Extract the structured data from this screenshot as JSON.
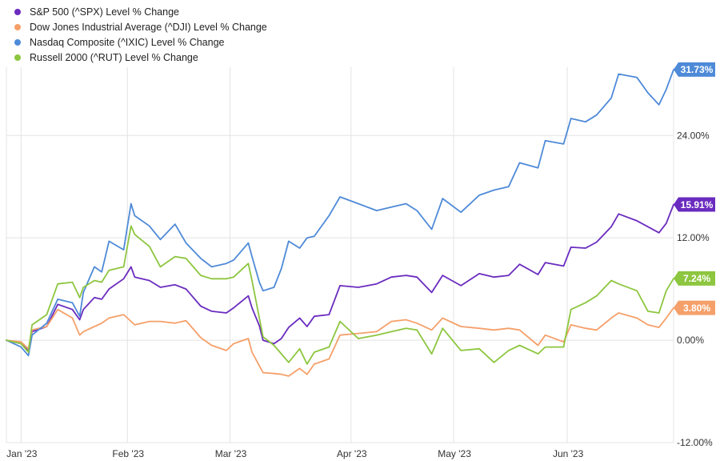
{
  "chart_data": {
    "type": "line",
    "title": "",
    "xlabel": "",
    "ylabel": "",
    "x_range": [
      "2022-12-30",
      "2023-06-30"
    ],
    "ylim": [
      -12,
      32
    ],
    "y_ticks": [
      {
        "value": 24,
        "label": "24.00%"
      },
      {
        "value": 12,
        "label": "12.00%"
      },
      {
        "value": 0,
        "label": "0.00%"
      },
      {
        "value": -12,
        "label": "-12.00%"
      }
    ],
    "x_ticks": [
      {
        "date": "2023-01-03",
        "label": "Jan '23"
      },
      {
        "date": "2023-02-01",
        "label": "Feb '23"
      },
      {
        "date": "2023-03-01",
        "label": "Mar '23"
      },
      {
        "date": "2023-04-03",
        "label": "Apr '23"
      },
      {
        "date": "2023-05-01",
        "label": "May '23"
      },
      {
        "date": "2023-06-01",
        "label": "Jun '23"
      }
    ],
    "grid": true,
    "legend_position": "top-left",
    "series": [
      {
        "name": "S&P 500 (^SPX) Level % Change",
        "color": "#6a2bbf",
        "end_label": "15.91%",
        "points": [
          [
            "2022-12-30",
            0
          ],
          [
            "2023-01-03",
            -0.4
          ],
          [
            "2023-01-05",
            -1.2
          ],
          [
            "2023-01-06",
            1.0
          ],
          [
            "2023-01-10",
            1.6
          ],
          [
            "2023-01-13",
            4.2
          ],
          [
            "2023-01-17",
            3.6
          ],
          [
            "2023-01-19",
            2.4
          ],
          [
            "2023-01-20",
            3.6
          ],
          [
            "2023-01-23",
            5.0
          ],
          [
            "2023-01-25",
            4.8
          ],
          [
            "2023-01-27",
            6.0
          ],
          [
            "2023-01-31",
            7.2
          ],
          [
            "2023-02-02",
            8.6
          ],
          [
            "2023-02-03",
            7.4
          ],
          [
            "2023-02-07",
            7.0
          ],
          [
            "2023-02-10",
            6.2
          ],
          [
            "2023-02-14",
            6.5
          ],
          [
            "2023-02-17",
            6.0
          ],
          [
            "2023-02-21",
            4.0
          ],
          [
            "2023-02-24",
            3.4
          ],
          [
            "2023-02-28",
            3.2
          ],
          [
            "2023-03-02",
            3.8
          ],
          [
            "2023-03-06",
            5.2
          ],
          [
            "2023-03-07",
            3.8
          ],
          [
            "2023-03-09",
            1.7
          ],
          [
            "2023-03-10",
            0.0
          ],
          [
            "2023-03-13",
            -0.4
          ],
          [
            "2023-03-15",
            0.2
          ],
          [
            "2023-03-17",
            1.5
          ],
          [
            "2023-03-20",
            2.6
          ],
          [
            "2023-03-22",
            1.6
          ],
          [
            "2023-03-24",
            2.8
          ],
          [
            "2023-03-28",
            3.0
          ],
          [
            "2023-03-31",
            6.4
          ],
          [
            "2023-04-05",
            6.2
          ],
          [
            "2023-04-10",
            6.6
          ],
          [
            "2023-04-14",
            7.4
          ],
          [
            "2023-04-18",
            7.6
          ],
          [
            "2023-04-21",
            7.4
          ],
          [
            "2023-04-25",
            5.6
          ],
          [
            "2023-04-28",
            7.6
          ],
          [
            "2023-05-03",
            6.4
          ],
          [
            "2023-05-08",
            7.8
          ],
          [
            "2023-05-12",
            7.4
          ],
          [
            "2023-05-16",
            7.6
          ],
          [
            "2023-05-19",
            8.9
          ],
          [
            "2023-05-24",
            7.7
          ],
          [
            "2023-05-26",
            9.1
          ],
          [
            "2023-05-31",
            8.7
          ],
          [
            "2023-06-02",
            10.9
          ],
          [
            "2023-06-06",
            10.8
          ],
          [
            "2023-06-09",
            11.5
          ],
          [
            "2023-06-13",
            13.3
          ],
          [
            "2023-06-15",
            14.8
          ],
          [
            "2023-06-20",
            14.0
          ],
          [
            "2023-06-23",
            13.3
          ],
          [
            "2023-06-26",
            12.6
          ],
          [
            "2023-06-28",
            13.7
          ],
          [
            "2023-06-30",
            15.91
          ]
        ]
      },
      {
        "name": "Dow Jones Industrial Average (^DJI) Level % Change",
        "color": "#f5a06a",
        "end_label": "3.80%",
        "points": [
          [
            "2022-12-30",
            0
          ],
          [
            "2023-01-03",
            -0.2
          ],
          [
            "2023-01-05",
            -1.0
          ],
          [
            "2023-01-06",
            1.2
          ],
          [
            "2023-01-10",
            1.6
          ],
          [
            "2023-01-13",
            3.6
          ],
          [
            "2023-01-17",
            2.6
          ],
          [
            "2023-01-19",
            0.6
          ],
          [
            "2023-01-20",
            1.0
          ],
          [
            "2023-01-23",
            1.6
          ],
          [
            "2023-01-25",
            2.0
          ],
          [
            "2023-01-27",
            2.6
          ],
          [
            "2023-01-31",
            3.0
          ],
          [
            "2023-02-02",
            2.2
          ],
          [
            "2023-02-03",
            1.8
          ],
          [
            "2023-02-07",
            2.2
          ],
          [
            "2023-02-10",
            2.2
          ],
          [
            "2023-02-14",
            2.0
          ],
          [
            "2023-02-17",
            2.3
          ],
          [
            "2023-02-21",
            0.3
          ],
          [
            "2023-02-24",
            -0.6
          ],
          [
            "2023-02-28",
            -1.2
          ],
          [
            "2023-03-02",
            -0.4
          ],
          [
            "2023-03-06",
            0.2
          ],
          [
            "2023-03-07",
            -1.4
          ],
          [
            "2023-03-09",
            -3.0
          ],
          [
            "2023-03-10",
            -3.8
          ],
          [
            "2023-03-13",
            -3.9
          ],
          [
            "2023-03-15",
            -4.0
          ],
          [
            "2023-03-17",
            -4.2
          ],
          [
            "2023-03-20",
            -3.3
          ],
          [
            "2023-03-22",
            -4.0
          ],
          [
            "2023-03-24",
            -2.8
          ],
          [
            "2023-03-28",
            -2.2
          ],
          [
            "2023-03-31",
            0.6
          ],
          [
            "2023-04-05",
            0.8
          ],
          [
            "2023-04-10",
            1.0
          ],
          [
            "2023-04-14",
            2.2
          ],
          [
            "2023-04-18",
            2.4
          ],
          [
            "2023-04-21",
            2.0
          ],
          [
            "2023-04-25",
            1.2
          ],
          [
            "2023-04-28",
            2.6
          ],
          [
            "2023-05-03",
            1.6
          ],
          [
            "2023-05-08",
            1.4
          ],
          [
            "2023-05-12",
            1.2
          ],
          [
            "2023-05-16",
            1.4
          ],
          [
            "2023-05-19",
            1.2
          ],
          [
            "2023-05-24",
            -0.6
          ],
          [
            "2023-05-26",
            0.6
          ],
          [
            "2023-05-31",
            -0.2
          ],
          [
            "2023-06-02",
            1.8
          ],
          [
            "2023-06-06",
            1.4
          ],
          [
            "2023-06-09",
            1.2
          ],
          [
            "2023-06-13",
            2.6
          ],
          [
            "2023-06-15",
            3.2
          ],
          [
            "2023-06-20",
            2.6
          ],
          [
            "2023-06-23",
            1.8
          ],
          [
            "2023-06-26",
            1.5
          ],
          [
            "2023-06-28",
            2.6
          ],
          [
            "2023-06-30",
            3.8
          ]
        ]
      },
      {
        "name": "Nasdaq Composite (^IXIC) Level % Change",
        "color": "#4e8ad8",
        "end_label": "31.73%",
        "points": [
          [
            "2022-12-30",
            0
          ],
          [
            "2023-01-03",
            -0.8
          ],
          [
            "2023-01-05",
            -1.8
          ],
          [
            "2023-01-06",
            0.6
          ],
          [
            "2023-01-10",
            2.0
          ],
          [
            "2023-01-13",
            4.8
          ],
          [
            "2023-01-17",
            4.4
          ],
          [
            "2023-01-19",
            2.8
          ],
          [
            "2023-01-20",
            5.6
          ],
          [
            "2023-01-23",
            8.6
          ],
          [
            "2023-01-25",
            8.0
          ],
          [
            "2023-01-27",
            11.6
          ],
          [
            "2023-01-31",
            10.6
          ],
          [
            "2023-02-02",
            16.0
          ],
          [
            "2023-02-03",
            14.6
          ],
          [
            "2023-02-07",
            13.4
          ],
          [
            "2023-02-10",
            11.8
          ],
          [
            "2023-02-14",
            13.6
          ],
          [
            "2023-02-17",
            11.4
          ],
          [
            "2023-02-21",
            9.6
          ],
          [
            "2023-02-24",
            8.6
          ],
          [
            "2023-02-28",
            9.0
          ],
          [
            "2023-03-02",
            9.4
          ],
          [
            "2023-03-06",
            11.4
          ],
          [
            "2023-03-07",
            9.8
          ],
          [
            "2023-03-09",
            6.8
          ],
          [
            "2023-03-10",
            5.8
          ],
          [
            "2023-03-13",
            6.2
          ],
          [
            "2023-03-15",
            8.4
          ],
          [
            "2023-03-17",
            11.6
          ],
          [
            "2023-03-20",
            10.8
          ],
          [
            "2023-03-22",
            12.0
          ],
          [
            "2023-03-24",
            12.2
          ],
          [
            "2023-03-28",
            14.6
          ],
          [
            "2023-03-31",
            16.8
          ],
          [
            "2023-04-05",
            16.0
          ],
          [
            "2023-04-10",
            15.2
          ],
          [
            "2023-04-14",
            15.6
          ],
          [
            "2023-04-18",
            16.0
          ],
          [
            "2023-04-21",
            15.2
          ],
          [
            "2023-04-25",
            13.0
          ],
          [
            "2023-04-28",
            16.6
          ],
          [
            "2023-05-03",
            15.0
          ],
          [
            "2023-05-08",
            17.0
          ],
          [
            "2023-05-12",
            17.6
          ],
          [
            "2023-05-16",
            18.0
          ],
          [
            "2023-05-19",
            20.8
          ],
          [
            "2023-05-24",
            20.2
          ],
          [
            "2023-05-26",
            23.4
          ],
          [
            "2023-05-31",
            23.0
          ],
          [
            "2023-06-02",
            26.0
          ],
          [
            "2023-06-06",
            25.6
          ],
          [
            "2023-06-09",
            26.4
          ],
          [
            "2023-06-13",
            28.4
          ],
          [
            "2023-06-15",
            31.2
          ],
          [
            "2023-06-20",
            30.8
          ],
          [
            "2023-06-23",
            29.0
          ],
          [
            "2023-06-26",
            27.6
          ],
          [
            "2023-06-28",
            29.4
          ],
          [
            "2023-06-30",
            31.73
          ]
        ]
      },
      {
        "name": "Russell 2000 (^RUT) Level % Change",
        "color": "#8dc63f",
        "end_label": "7.24%",
        "points": [
          [
            "2022-12-30",
            0
          ],
          [
            "2023-01-03",
            -0.4
          ],
          [
            "2023-01-05",
            -1.4
          ],
          [
            "2023-01-06",
            1.8
          ],
          [
            "2023-01-10",
            3.0
          ],
          [
            "2023-01-13",
            6.6
          ],
          [
            "2023-01-17",
            6.8
          ],
          [
            "2023-01-19",
            5.0
          ],
          [
            "2023-01-20",
            6.2
          ],
          [
            "2023-01-23",
            7.0
          ],
          [
            "2023-01-25",
            6.8
          ],
          [
            "2023-01-27",
            8.2
          ],
          [
            "2023-01-31",
            8.6
          ],
          [
            "2023-02-02",
            13.4
          ],
          [
            "2023-02-03",
            12.4
          ],
          [
            "2023-02-07",
            11.0
          ],
          [
            "2023-02-10",
            8.6
          ],
          [
            "2023-02-14",
            9.8
          ],
          [
            "2023-02-17",
            9.6
          ],
          [
            "2023-02-21",
            7.6
          ],
          [
            "2023-02-24",
            7.2
          ],
          [
            "2023-02-28",
            7.2
          ],
          [
            "2023-03-02",
            7.4
          ],
          [
            "2023-03-06",
            9.0
          ],
          [
            "2023-03-07",
            7.0
          ],
          [
            "2023-03-09",
            2.6
          ],
          [
            "2023-03-10",
            0.4
          ],
          [
            "2023-03-13",
            -0.6
          ],
          [
            "2023-03-15",
            -1.6
          ],
          [
            "2023-03-17",
            -2.6
          ],
          [
            "2023-03-20",
            -1.0
          ],
          [
            "2023-03-22",
            -2.8
          ],
          [
            "2023-03-24",
            -1.4
          ],
          [
            "2023-03-28",
            -0.8
          ],
          [
            "2023-03-31",
            2.2
          ],
          [
            "2023-04-05",
            0.2
          ],
          [
            "2023-04-10",
            0.6
          ],
          [
            "2023-04-14",
            1.0
          ],
          [
            "2023-04-18",
            1.4
          ],
          [
            "2023-04-21",
            1.2
          ],
          [
            "2023-04-25",
            -1.6
          ],
          [
            "2023-04-28",
            1.4
          ],
          [
            "2023-05-03",
            -1.2
          ],
          [
            "2023-05-08",
            -1.0
          ],
          [
            "2023-05-12",
            -2.6
          ],
          [
            "2023-05-16",
            -1.2
          ],
          [
            "2023-05-19",
            -0.6
          ],
          [
            "2023-05-24",
            -1.6
          ],
          [
            "2023-05-26",
            -0.8
          ],
          [
            "2023-05-31",
            -0.8
          ],
          [
            "2023-06-02",
            3.6
          ],
          [
            "2023-06-06",
            4.4
          ],
          [
            "2023-06-09",
            5.2
          ],
          [
            "2023-06-13",
            7.0
          ],
          [
            "2023-06-15",
            6.6
          ],
          [
            "2023-06-20",
            5.8
          ],
          [
            "2023-06-23",
            3.4
          ],
          [
            "2023-06-26",
            3.2
          ],
          [
            "2023-06-28",
            5.8
          ],
          [
            "2023-06-30",
            7.24
          ]
        ]
      }
    ]
  }
}
